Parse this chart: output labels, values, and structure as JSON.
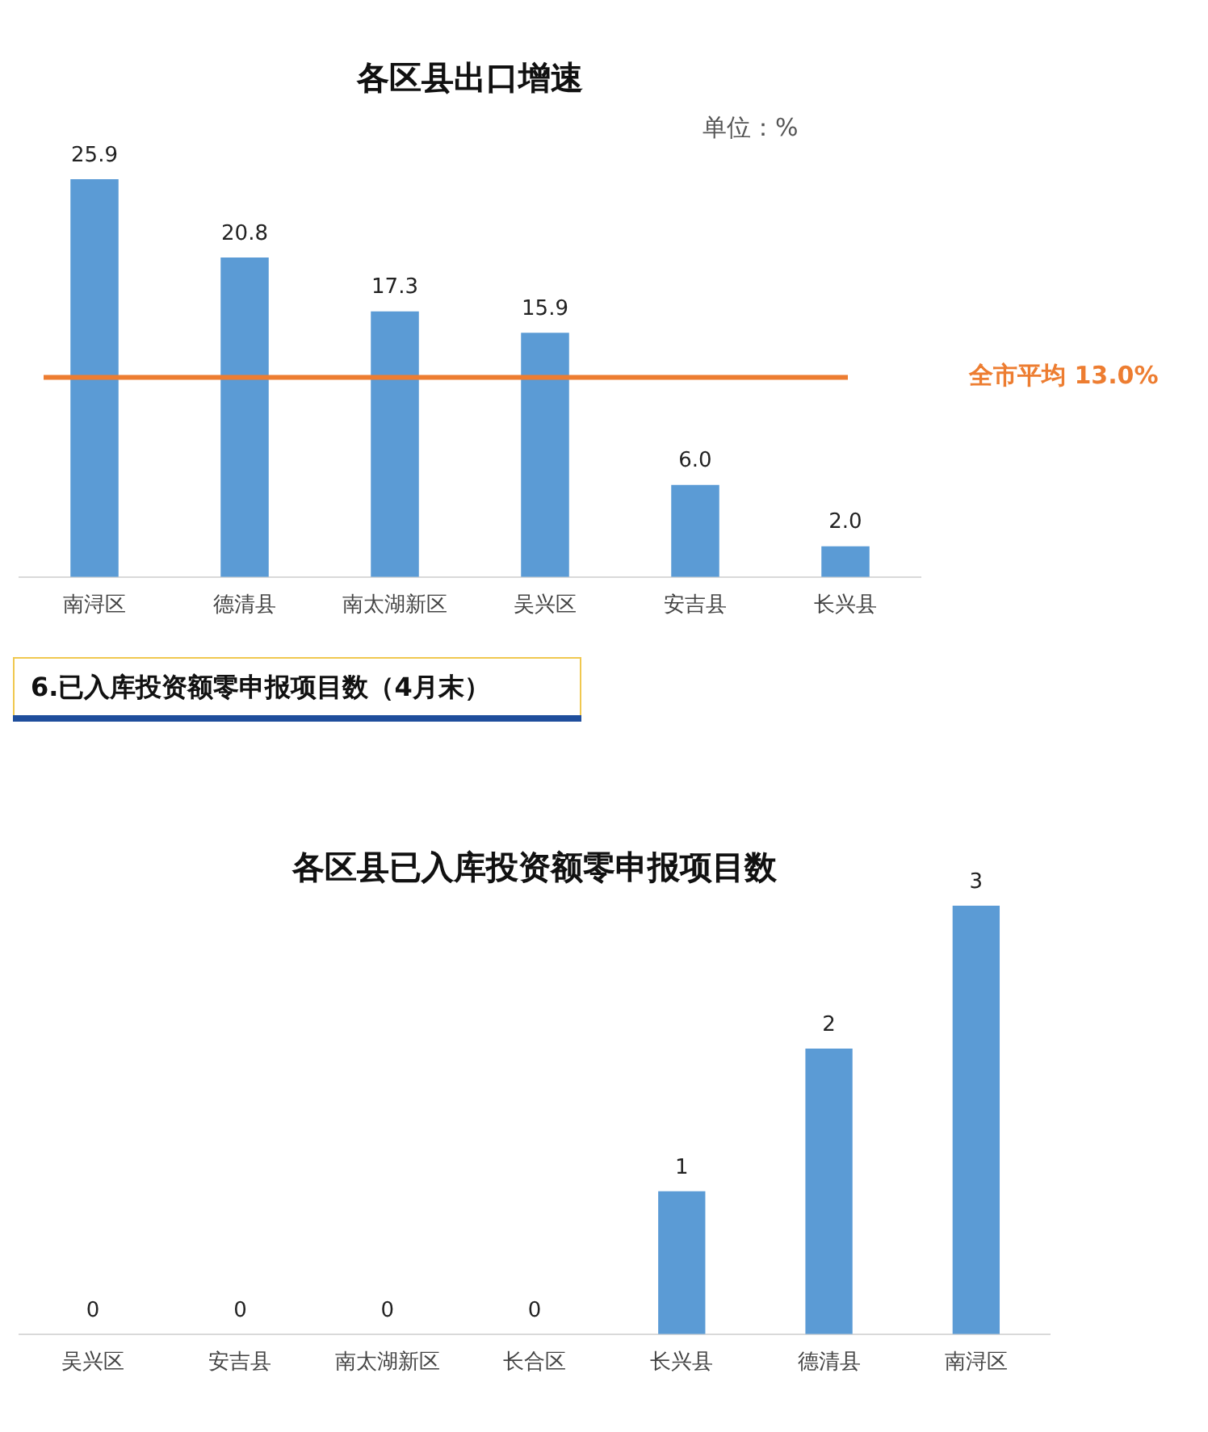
{
  "chart_data": [
    {
      "type": "bar",
      "title": "各区县出口增速",
      "categories": [
        "南浔区",
        "德清县",
        "南太湖新区",
        "吴兴区",
        "安吉县",
        "长兴县"
      ],
      "values": [
        25.9,
        20.8,
        17.3,
        15.9,
        6.0,
        2.0
      ],
      "value_labels": [
        "25.9",
        "20.8",
        "17.3",
        "15.9",
        "6.0",
        "2.0"
      ],
      "color": "#5b9bd5",
      "grid": false,
      "legend": false,
      "annotations": [
        "单位：%"
      ],
      "ref_lines": [
        {
          "axis": "y",
          "value": 13.0,
          "label": "全市平均 13.0%",
          "color": "#ed7d31"
        }
      ]
    },
    {
      "type": "other",
      "title": "6.已入库投资额零申报项目数（4月末）"
    },
    {
      "type": "bar",
      "title": "各区县已入库投资额零申报项目数",
      "categories": [
        "吴兴区",
        "安吉县",
        "南太湖新区",
        "长合区",
        "长兴县",
        "德清县",
        "南浔区"
      ],
      "values": [
        0,
        0,
        0,
        0,
        1,
        2,
        3
      ],
      "color": "#5b9bd5",
      "grid": false,
      "legend": false,
      "data_labels": true
    }
  ]
}
